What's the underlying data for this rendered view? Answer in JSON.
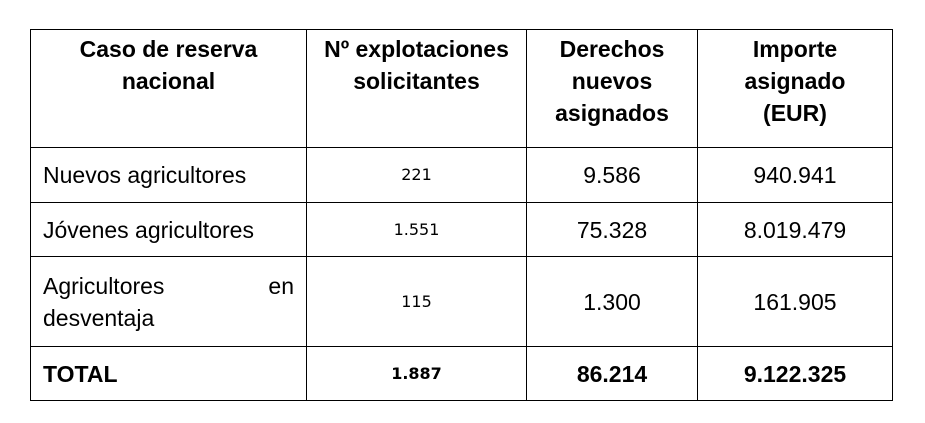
{
  "table": {
    "headers": [
      "Caso de reserva nacional",
      "Nº explotaciones solicitantes",
      "Derechos nuevos asignados",
      "Importe asignado (EUR)"
    ],
    "rows": [
      {
        "caso": "Nuevos agricultores",
        "explotaciones": "221",
        "derechos": "9.586",
        "importe": "940.941"
      },
      {
        "caso": "Jóvenes agricultores",
        "explotaciones": "1.551",
        "derechos": "75.328",
        "importe": "8.019.479"
      },
      {
        "caso_word1": "Agricultores",
        "caso_word2": "en",
        "caso_word3": "desventaja",
        "explotaciones": "115",
        "derechos": "1.300",
        "importe": "161.905"
      }
    ],
    "total": {
      "label": "TOTAL",
      "explotaciones": "1.887",
      "derechos": "86.214",
      "importe": "9.122.325"
    }
  }
}
